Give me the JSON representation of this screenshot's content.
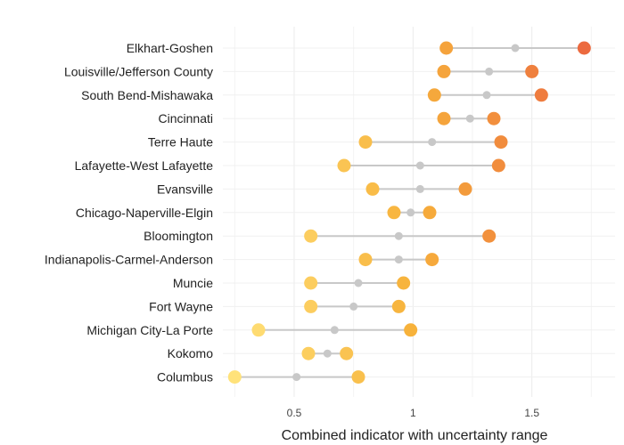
{
  "chart_data": {
    "type": "dot-range",
    "xlabel": "Combined indicator with uncertainty range",
    "xlim": [
      0.2,
      1.85
    ],
    "xticks": [
      0.5,
      1,
      1.5
    ],
    "xtick_labels": [
      "0.5",
      "1",
      "1.5"
    ],
    "grid": true,
    "legend": "none",
    "colors": {
      "range_line": "#c8c8c8",
      "mid_point": "#c8c8c8",
      "gradient_low": "#ffe27a",
      "gradient_mid": "#f7b23b",
      "gradient_high": "#ec6a3f"
    },
    "categories": [
      "Elkhart-Goshen",
      "Louisville/Jefferson County",
      "South Bend-Mishawaka",
      "Cincinnati",
      "Terre Haute",
      "Lafayette-West Lafayette",
      "Evansville",
      "Chicago-Naperville-Elgin",
      "Bloomington",
      "Indianapolis-Carmel-Anderson",
      "Muncie",
      "Fort Wayne",
      "Michigan City-La Porte",
      "Kokomo",
      "Columbus"
    ],
    "low": [
      1.14,
      1.13,
      1.09,
      1.13,
      0.8,
      0.71,
      0.83,
      0.92,
      0.57,
      0.8,
      0.57,
      0.57,
      0.35,
      0.56,
      0.25
    ],
    "mid": [
      1.43,
      1.32,
      1.31,
      1.24,
      1.08,
      1.03,
      1.03,
      0.99,
      0.94,
      0.94,
      0.77,
      0.75,
      0.67,
      0.64,
      0.51
    ],
    "high": [
      1.72,
      1.5,
      1.54,
      1.34,
      1.37,
      1.36,
      1.22,
      1.07,
      1.32,
      1.08,
      0.96,
      0.94,
      0.99,
      0.72,
      0.77
    ]
  }
}
